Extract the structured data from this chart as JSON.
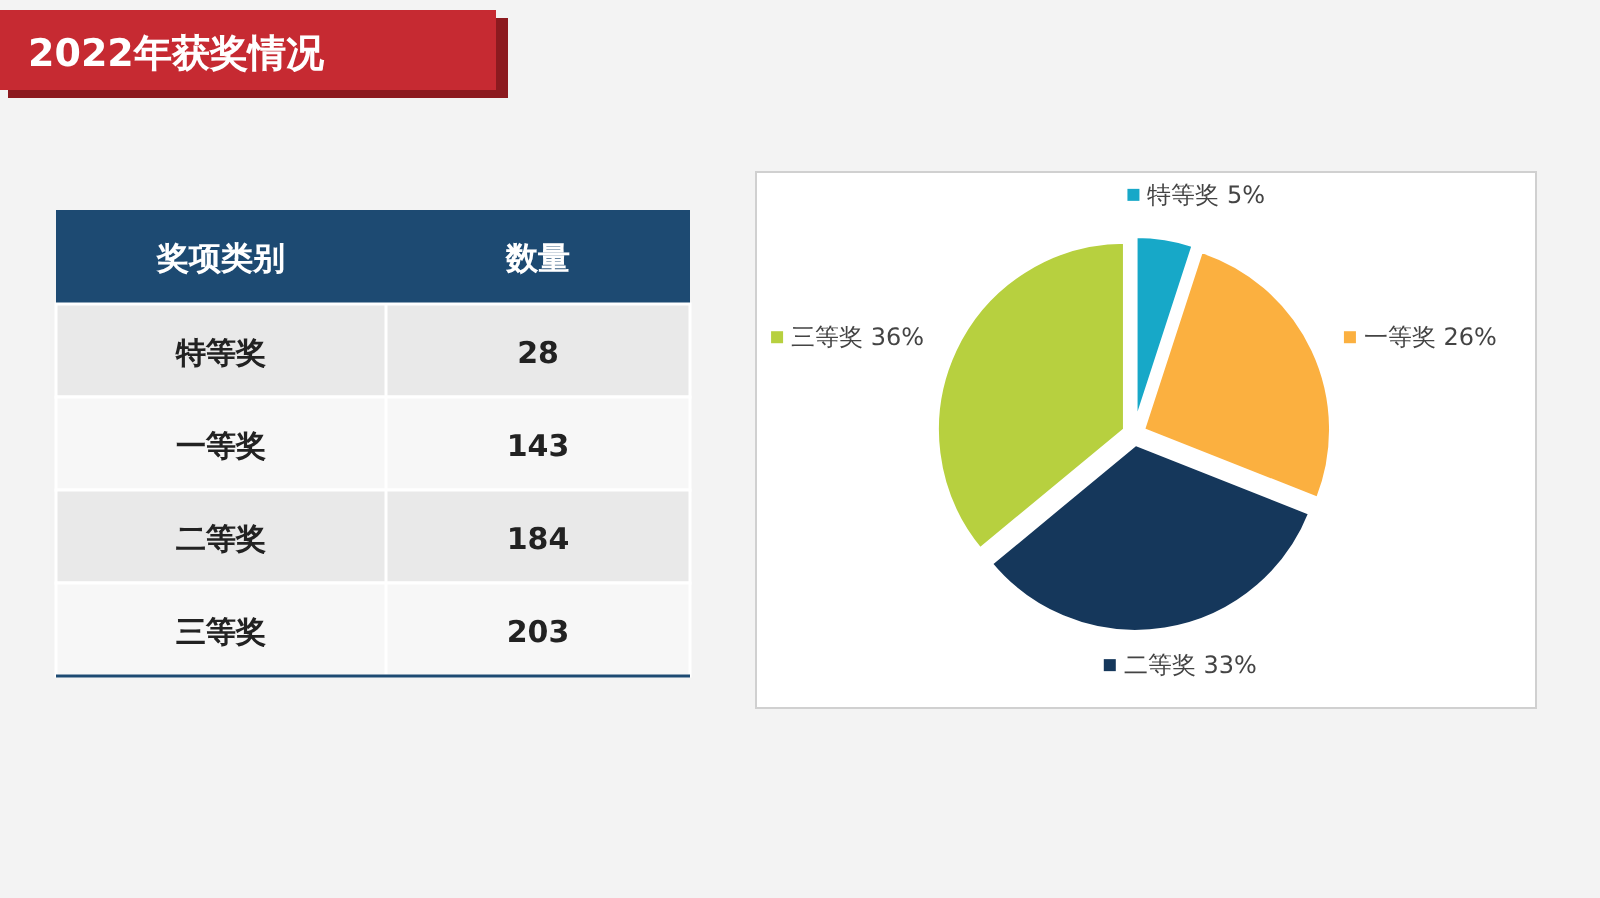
{
  "chart_data": [
    {
      "type": "other",
      "title": "2022年获奖情况",
      "annotations": [
        "奖项类别",
        "数量",
        "特等奖",
        "28",
        "一等奖",
        "143",
        "二等奖",
        "184",
        "三等奖",
        "203"
      ]
    },
    {
      "type": "pie",
      "categories": [
        "特等奖",
        "一等奖",
        "二等奖",
        "三等奖"
      ],
      "values": [
        5,
        26,
        33,
        36
      ],
      "value_labels": [
        "5%",
        "26%",
        "33%",
        "36%"
      ],
      "colors": [
        "#17a8c8",
        "#fbb040",
        "#15375b",
        "#b7d03f"
      ],
      "legend": "top left"
    }
  ]
}
